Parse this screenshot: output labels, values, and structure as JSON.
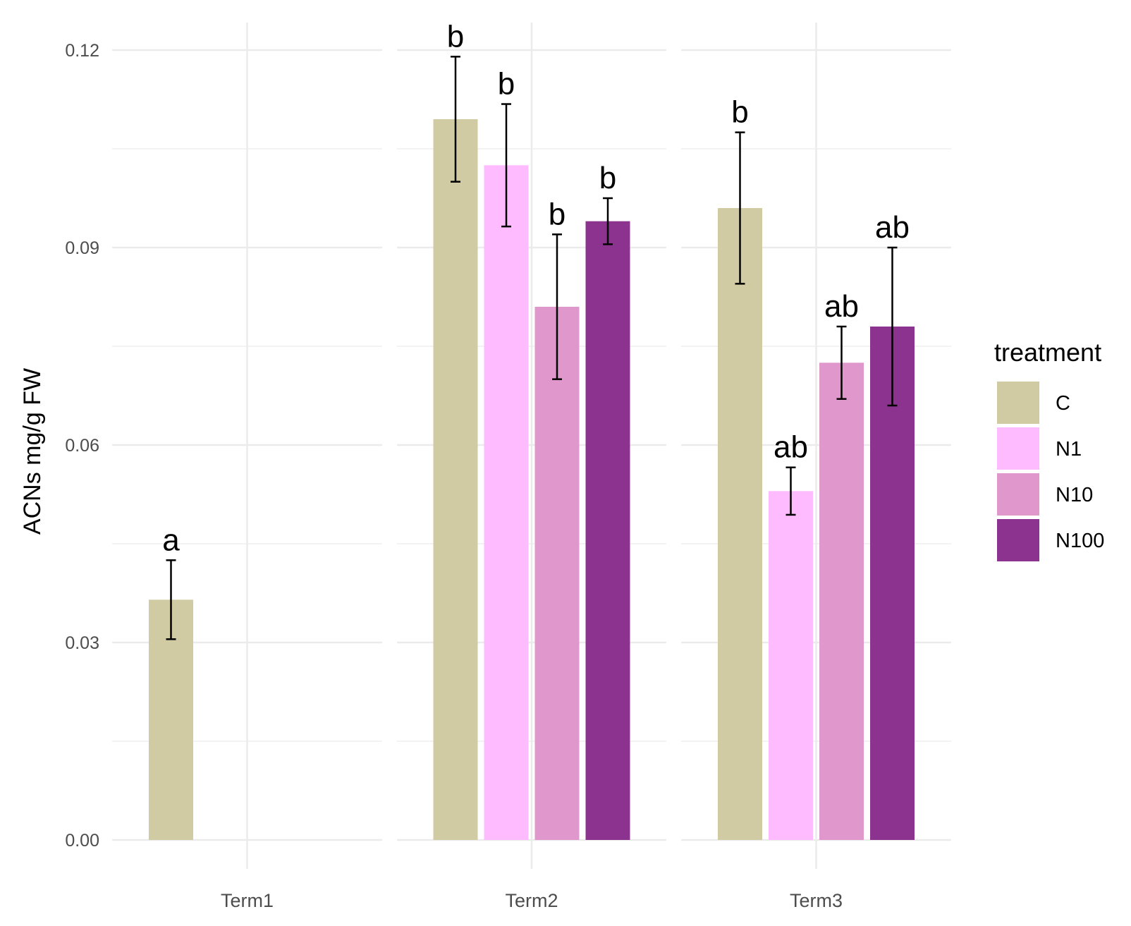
{
  "chart_data": {
    "type": "bar",
    "title": "",
    "xlabel": "",
    "ylabel": "ACNs mg/g FW",
    "ylim": [
      0,
      0.1235
    ],
    "yticks": [
      "0.00",
      "0.03",
      "0.06",
      "0.09",
      "0.12"
    ],
    "ytick_values": [
      0,
      0.03,
      0.06,
      0.09,
      0.12
    ],
    "categories": [
      "Term1",
      "Term2",
      "Term3"
    ],
    "legend": {
      "title": "treatment",
      "position": "right",
      "entries": [
        {
          "name": "C",
          "color": "#d0cba3"
        },
        {
          "name": "N1",
          "color": "#ffbbff"
        },
        {
          "name": "N10",
          "color": "#df97cc"
        },
        {
          "name": "N100",
          "color": "#8b338e"
        }
      ]
    },
    "series": [
      {
        "name": "C",
        "color": "#d0cba3",
        "values": [
          0.0365,
          0.1095,
          0.096
        ],
        "errors": [
          0.006,
          0.0095,
          0.0115
        ],
        "labels": [
          "a",
          "b",
          "b"
        ]
      },
      {
        "name": "N1",
        "color": "#ffbbff",
        "values": [
          null,
          0.1025,
          0.053
        ],
        "errors": [
          null,
          0.0093,
          0.0036
        ],
        "labels": [
          "",
          "b",
          "ab"
        ]
      },
      {
        "name": "N10",
        "color": "#df97cc",
        "values": [
          null,
          0.081,
          0.0725
        ],
        "errors": [
          null,
          0.011,
          0.0055
        ],
        "labels": [
          "",
          "b",
          "ab"
        ]
      },
      {
        "name": "N100",
        "color": "#8b338e",
        "values": [
          null,
          0.094,
          0.078
        ],
        "errors": [
          null,
          0.0035,
          0.012
        ],
        "labels": [
          "",
          "b",
          "ab"
        ]
      }
    ]
  }
}
